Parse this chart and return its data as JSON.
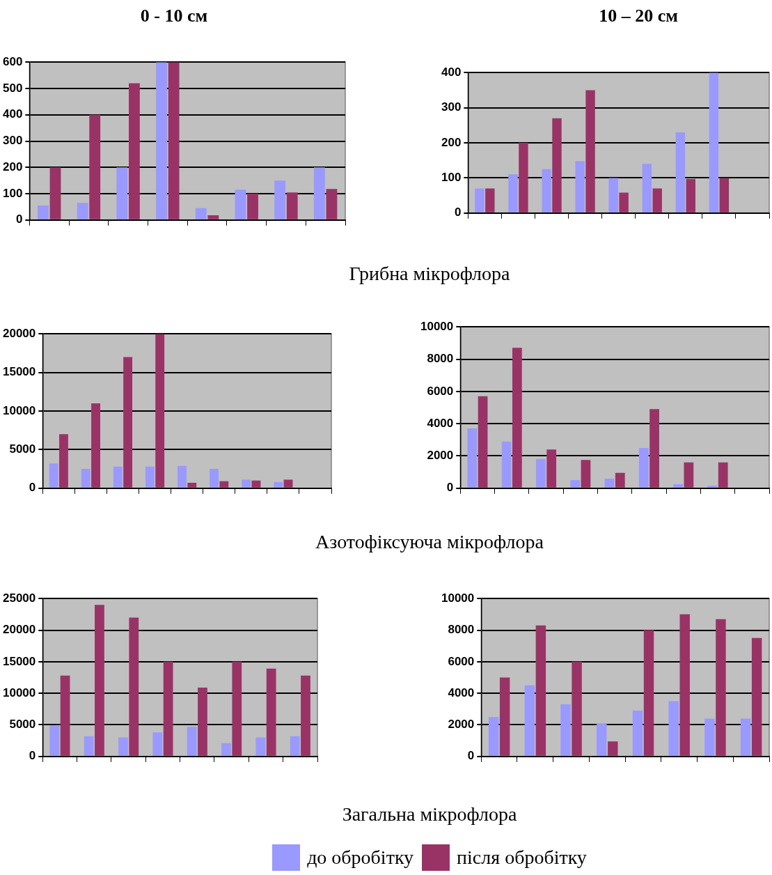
{
  "chart_data": [
    {
      "type": "bar",
      "title": "0 - 10 см",
      "annotations": [
        "Грибна мікрофлора"
      ],
      "categories": [
        null,
        null,
        null,
        null,
        null,
        null,
        null,
        null
      ],
      "series": [
        {
          "color": "#9999ff",
          "values": [
            55,
            65,
            200,
            600,
            45,
            115,
            150,
            200
          ]
        },
        {
          "color": "#993366",
          "values": [
            200,
            400,
            520,
            600,
            18,
            100,
            105,
            118
          ]
        }
      ],
      "ylim": [
        0,
        600
      ],
      "yticks": [
        0,
        100,
        200,
        300,
        400,
        500,
        600
      ],
      "grid": "y",
      "tick_labels": "y",
      "legend": false
    },
    {
      "type": "bar",
      "title": "10 – 20 см",
      "categories": [
        null,
        null,
        null,
        null,
        null,
        null,
        null,
        null,
        null
      ],
      "series": [
        {
          "color": "#9999ff",
          "values": [
            70,
            110,
            125,
            148,
            100,
            140,
            230,
            400,
            null
          ]
        },
        {
          "color": "#993366",
          "values": [
            70,
            200,
            270,
            350,
            58,
            70,
            97,
            100,
            null
          ]
        }
      ],
      "ylim": [
        0,
        400
      ],
      "yticks": [
        0,
        100,
        200,
        300,
        400
      ],
      "grid": "y",
      "tick_labels": "y",
      "legend": false
    },
    {
      "type": "bar",
      "annotations": [
        "Азотофіксуюча мікрофлора"
      ],
      "categories": [
        null,
        null,
        null,
        null,
        null,
        null,
        null,
        null,
        null
      ],
      "series": [
        {
          "color": "#9999ff",
          "values": [
            3200,
            2500,
            2800,
            2800,
            2900,
            2500,
            1100,
            800,
            null
          ]
        },
        {
          "color": "#993366",
          "values": [
            7000,
            11000,
            17000,
            20000,
            700,
            900,
            1000,
            1100,
            null
          ]
        }
      ],
      "ylim": [
        0,
        20000
      ],
      "yticks": [
        0,
        5000,
        10000,
        15000,
        20000
      ],
      "grid": "y",
      "tick_labels": "y",
      "legend": false
    },
    {
      "type": "bar",
      "categories": [
        null,
        null,
        null,
        null,
        null,
        null,
        null,
        null,
        null
      ],
      "series": [
        {
          "color": "#9999ff",
          "values": [
            3700,
            2900,
            1800,
            500,
            600,
            2500,
            250,
            150,
            null
          ]
        },
        {
          "color": "#993366",
          "values": [
            5700,
            8700,
            2400,
            1750,
            950,
            4900,
            1600,
            1600,
            null
          ]
        }
      ],
      "ylim": [
        0,
        10000
      ],
      "yticks": [
        0,
        2000,
        4000,
        6000,
        8000,
        10000
      ],
      "grid": "y",
      "tick_labels": "y",
      "legend": false
    },
    {
      "type": "bar",
      "annotations": [
        "Загальна мікрофлора"
      ],
      "categories": [
        null,
        null,
        null,
        null,
        null,
        null,
        null,
        null
      ],
      "series": [
        {
          "color": "#9999ff",
          "values": [
            4900,
            3200,
            3000,
            3800,
            4700,
            2100,
            3000,
            3200
          ]
        },
        {
          "color": "#993366",
          "values": [
            12800,
            24000,
            22000,
            15000,
            10900,
            15000,
            13900,
            12800
          ]
        }
      ],
      "ylim": [
        0,
        25000
      ],
      "yticks": [
        0,
        5000,
        10000,
        15000,
        20000,
        25000
      ],
      "grid": "y",
      "tick_labels": "y",
      "legend": false
    },
    {
      "type": "bar",
      "categories": [
        null,
        null,
        null,
        null,
        null,
        null,
        null,
        null
      ],
      "series": [
        {
          "name": "до обробітку",
          "color": "#9999ff",
          "values": [
            2500,
            4500,
            3300,
            2100,
            2900,
            3500,
            2400,
            2400
          ]
        },
        {
          "name": "після обробітку",
          "color": "#993366",
          "values": [
            5000,
            8300,
            6000,
            950,
            8000,
            9000,
            8700,
            7500
          ]
        }
      ],
      "ylim": [
        0,
        10000
      ],
      "yticks": [
        0,
        2000,
        4000,
        6000,
        8000,
        10000
      ],
      "grid": "y",
      "tick_labels": "y",
      "legend": "bottom"
    }
  ]
}
